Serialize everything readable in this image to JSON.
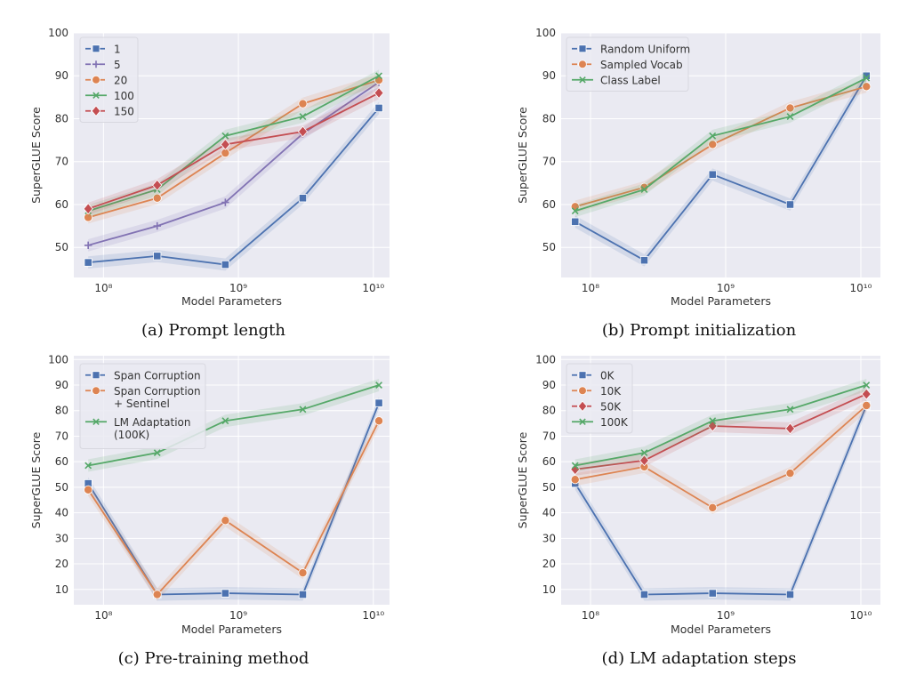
{
  "colors": {
    "background": "#eaeaf2",
    "grid": "#ffffff",
    "blue": "#4c72b0",
    "orange": "#dd8452",
    "green": "#55a868",
    "red": "#c44e52",
    "purple": "#8172b3"
  },
  "chart_data": [
    {
      "type": "line",
      "caption": "(a) Prompt length",
      "xlabel": "Model Parameters",
      "ylabel": "SuperGLUE Score",
      "xscale": "log",
      "x": [
        77000000,
        250000000,
        800000000,
        3000000000,
        11000000000
      ],
      "xticks": [
        {
          "value": 100000000,
          "label": "10⁸"
        },
        {
          "value": 1000000000,
          "label": "10⁹"
        },
        {
          "value": 10000000000,
          "label": "10¹⁰"
        }
      ],
      "yticks": [
        50,
        60,
        70,
        80,
        90,
        100
      ],
      "ylim": [
        43,
        100
      ],
      "grid": true,
      "legend": "top-left",
      "series": [
        {
          "name": "1",
          "color": "#4c72b0",
          "marker": "square",
          "values": [
            46.5,
            48,
            46,
            61.5,
            82.5
          ]
        },
        {
          "name": "5",
          "color": "#8172b3",
          "marker": "plus",
          "values": [
            50.5,
            55,
            60.5,
            76.5,
            88.5
          ]
        },
        {
          "name": "20",
          "color": "#dd8452",
          "marker": "circle",
          "values": [
            57,
            61.5,
            72,
            83.5,
            89
          ]
        },
        {
          "name": "100",
          "color": "#55a868",
          "marker": "x",
          "values": [
            58.5,
            63.5,
            76,
            80.5,
            90
          ]
        },
        {
          "name": "150",
          "color": "#c44e52",
          "marker": "diamond",
          "values": [
            59,
            64.5,
            74,
            77,
            86
          ]
        }
      ]
    },
    {
      "type": "line",
      "caption": "(b) Prompt initialization",
      "xlabel": "Model Parameters",
      "ylabel": "SuperGLUE Score",
      "xscale": "log",
      "x": [
        77000000,
        250000000,
        800000000,
        3000000000,
        11000000000
      ],
      "xticks": [
        {
          "value": 100000000,
          "label": "10⁸"
        },
        {
          "value": 1000000000,
          "label": "10⁹"
        },
        {
          "value": 10000000000,
          "label": "10¹⁰"
        }
      ],
      "yticks": [
        50,
        60,
        70,
        80,
        90,
        100
      ],
      "ylim": [
        43,
        100
      ],
      "grid": true,
      "legend": "top-left",
      "series": [
        {
          "name": "Random Uniform",
          "color": "#4c72b0",
          "marker": "square",
          "values": [
            56,
            47,
            67,
            60,
            90
          ]
        },
        {
          "name": "Sampled Vocab",
          "color": "#dd8452",
          "marker": "circle",
          "values": [
            59.5,
            64,
            74,
            82.5,
            87.5
          ]
        },
        {
          "name": "Class Label",
          "color": "#55a868",
          "marker": "x",
          "values": [
            58.5,
            63.5,
            76,
            80.5,
            89.5
          ]
        }
      ]
    },
    {
      "type": "line",
      "caption": "(c) Pre-training method",
      "xlabel": "Model Parameters",
      "ylabel": "SuperGLUE Score",
      "xscale": "log",
      "x": [
        77000000,
        250000000,
        800000000,
        3000000000,
        11000000000
      ],
      "xticks": [
        {
          "value": 100000000,
          "label": "10⁸"
        },
        {
          "value": 1000000000,
          "label": "10⁹"
        },
        {
          "value": 10000000000,
          "label": "10¹⁰"
        }
      ],
      "yticks": [
        10,
        20,
        30,
        40,
        50,
        60,
        70,
        80,
        90,
        100
      ],
      "ylim": [
        4,
        101.5
      ],
      "grid": true,
      "legend": "top-left",
      "series": [
        {
          "name": "Span Corruption",
          "color": "#4c72b0",
          "marker": "square",
          "values": [
            51.5,
            8,
            8.5,
            8,
            83
          ]
        },
        {
          "name": "Span Corruption\n+ Sentinel",
          "color": "#dd8452",
          "marker": "circle",
          "values": [
            49,
            8,
            37,
            16.5,
            76
          ]
        },
        {
          "name": "LM Adaptation\n(100K)",
          "color": "#55a868",
          "marker": "x",
          "values": [
            58.5,
            63.5,
            76,
            80.5,
            90
          ]
        }
      ]
    },
    {
      "type": "line",
      "caption": "(d) LM adaptation steps",
      "xlabel": "Model Parameters",
      "ylabel": "SuperGLUE Score",
      "xscale": "log",
      "x": [
        77000000,
        250000000,
        800000000,
        3000000000,
        11000000000
      ],
      "xticks": [
        {
          "value": 100000000,
          "label": "10⁸"
        },
        {
          "value": 1000000000,
          "label": "10⁹"
        },
        {
          "value": 10000000000,
          "label": "10¹⁰"
        }
      ],
      "yticks": [
        10,
        20,
        30,
        40,
        50,
        60,
        70,
        80,
        90,
        100
      ],
      "ylim": [
        4,
        101.5
      ],
      "grid": true,
      "legend": "top-left",
      "series": [
        {
          "name": "0K",
          "color": "#4c72b0",
          "marker": "square",
          "values": [
            51.5,
            8,
            8.5,
            8,
            82
          ]
        },
        {
          "name": "10K",
          "color": "#dd8452",
          "marker": "circle",
          "values": [
            53,
            58,
            42,
            55.5,
            82
          ]
        },
        {
          "name": "50K",
          "color": "#c44e52",
          "marker": "diamond",
          "values": [
            57,
            60.5,
            74,
            73,
            86.5
          ]
        },
        {
          "name": "100K",
          "color": "#55a868",
          "marker": "x",
          "values": [
            58.5,
            63.5,
            76,
            80.5,
            90
          ]
        }
      ]
    }
  ]
}
